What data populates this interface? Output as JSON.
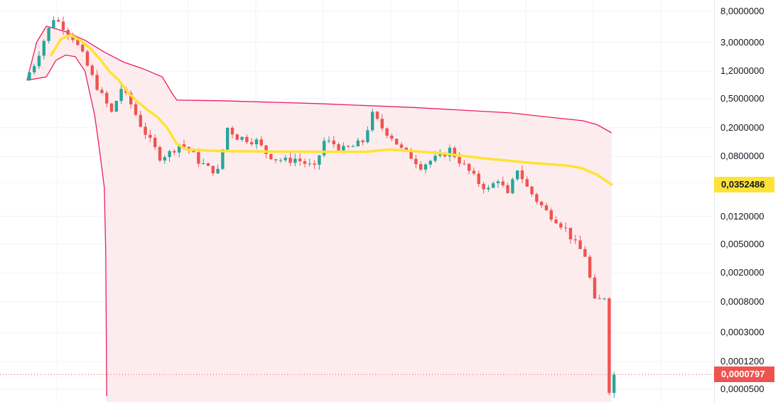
{
  "chart_data": {
    "type": "candlestick",
    "scale": "log",
    "grid": true,
    "y_ticks": [
      "8,0000000",
      "3,0000000",
      "1,2000000",
      "0,5000000",
      "0,2000000",
      "0,0800000",
      "0,0350000",
      "0,0120000",
      "0,0050000",
      "0,0020000",
      "0,0008000",
      "0,0003000",
      "0,0001200",
      "0,0000500"
    ],
    "y_tick_values": [
      8,
      3,
      1.2,
      0.5,
      0.2,
      0.08,
      0.035,
      0.012,
      0.005,
      0.002,
      0.0008,
      0.0003,
      0.00012,
      5e-05
    ],
    "ylim": [
      4e-05,
      10
    ],
    "price_path": [
      [
        0,
        0.9
      ],
      [
        2,
        1.5
      ],
      [
        4,
        3.2
      ],
      [
        6,
        6.5
      ],
      [
        8,
        5.0
      ],
      [
        10,
        3.5
      ],
      [
        12,
        2.0
      ],
      [
        14,
        1.0
      ],
      [
        16,
        0.55
      ],
      [
        18,
        0.32
      ],
      [
        20,
        0.7
      ],
      [
        22,
        0.42
      ],
      [
        24,
        0.22
      ],
      [
        26,
        0.13
      ],
      [
        28,
        0.08
      ],
      [
        30,
        0.09
      ],
      [
        32,
        0.12
      ],
      [
        34,
        0.1
      ],
      [
        36,
        0.07
      ],
      [
        38,
        0.055
      ],
      [
        40,
        0.05
      ],
      [
        42,
        0.2
      ],
      [
        44,
        0.15
      ],
      [
        46,
        0.14
      ],
      [
        48,
        0.13
      ],
      [
        50,
        0.09
      ],
      [
        52,
        0.075
      ],
      [
        54,
        0.07
      ],
      [
        56,
        0.075
      ],
      [
        58,
        0.065
      ],
      [
        60,
        0.055
      ],
      [
        62,
        0.13
      ],
      [
        64,
        0.12
      ],
      [
        66,
        0.1
      ],
      [
        68,
        0.11
      ],
      [
        70,
        0.13
      ],
      [
        72,
        0.3
      ],
      [
        74,
        0.2
      ],
      [
        76,
        0.15
      ],
      [
        78,
        0.1
      ],
      [
        80,
        0.08
      ],
      [
        82,
        0.06
      ],
      [
        84,
        0.07
      ],
      [
        86,
        0.08
      ],
      [
        88,
        0.1
      ],
      [
        90,
        0.07
      ],
      [
        92,
        0.05
      ],
      [
        94,
        0.035
      ],
      [
        96,
        0.028
      ],
      [
        98,
        0.04
      ],
      [
        100,
        0.023
      ],
      [
        102,
        0.055
      ],
      [
        104,
        0.03
      ],
      [
        106,
        0.02
      ],
      [
        108,
        0.014
      ],
      [
        110,
        0.011
      ],
      [
        112,
        0.008
      ],
      [
        114,
        0.005
      ],
      [
        116,
        0.0035
      ],
      [
        118,
        0.0008
      ],
      [
        119,
        0.00085
      ],
      [
        120,
        0.00095
      ],
      [
        121,
        5e-05
      ]
    ],
    "upper_band": [
      [
        0,
        0.9
      ],
      [
        2,
        3.0
      ],
      [
        4,
        5.0
      ],
      [
        6,
        4.6
      ],
      [
        8,
        4.2
      ],
      [
        12,
        3.2
      ],
      [
        16,
        2.2
      ],
      [
        20,
        1.6
      ],
      [
        24,
        1.3
      ],
      [
        28,
        1.0
      ],
      [
        30,
        0.6
      ],
      [
        31,
        0.48
      ],
      [
        40,
        0.47
      ],
      [
        60,
        0.43
      ],
      [
        80,
        0.38
      ],
      [
        100,
        0.32
      ],
      [
        110,
        0.27
      ],
      [
        115,
        0.25
      ],
      [
        118,
        0.22
      ],
      [
        121,
        0.17
      ]
    ],
    "lower_band": [
      [
        0,
        0.9
      ],
      [
        4,
        1.0
      ],
      [
        6,
        1.7
      ],
      [
        8,
        2.0
      ],
      [
        10,
        1.9
      ],
      [
        12,
        1.2
      ],
      [
        14,
        0.3
      ],
      [
        15,
        0.1
      ],
      [
        16,
        0.03
      ],
      [
        16.3,
        0.004
      ],
      [
        16.5,
        4e-05
      ]
    ],
    "moving_average": [
      [
        5,
        2.0
      ],
      [
        7,
        3.3
      ],
      [
        9,
        3.8
      ],
      [
        11,
        3.2
      ],
      [
        13,
        2.5
      ],
      [
        15,
        1.8
      ],
      [
        17,
        1.2
      ],
      [
        19,
        0.9
      ],
      [
        21,
        0.6
      ],
      [
        23,
        0.45
      ],
      [
        25,
        0.35
      ],
      [
        27,
        0.28
      ],
      [
        29,
        0.2
      ],
      [
        31,
        0.12
      ],
      [
        33,
        0.1
      ],
      [
        40,
        0.095
      ],
      [
        60,
        0.093
      ],
      [
        70,
        0.093
      ],
      [
        75,
        0.1
      ],
      [
        85,
        0.09
      ],
      [
        95,
        0.075
      ],
      [
        105,
        0.065
      ],
      [
        112,
        0.06
      ],
      [
        115,
        0.055
      ],
      [
        118,
        0.045
      ],
      [
        121,
        0.033
      ]
    ],
    "moving_average_value": "0,0352486",
    "last_price": "0,0000797",
    "last_price_value": 7.97e-05,
    "colors": {
      "up": "#26a69a",
      "down": "#ef5350",
      "band": "#e91e63",
      "band_fill": "#fdecee",
      "moving_average": "#ffe234",
      "last_price_line": "#ef5350",
      "grid": "#f0f3fa"
    }
  }
}
